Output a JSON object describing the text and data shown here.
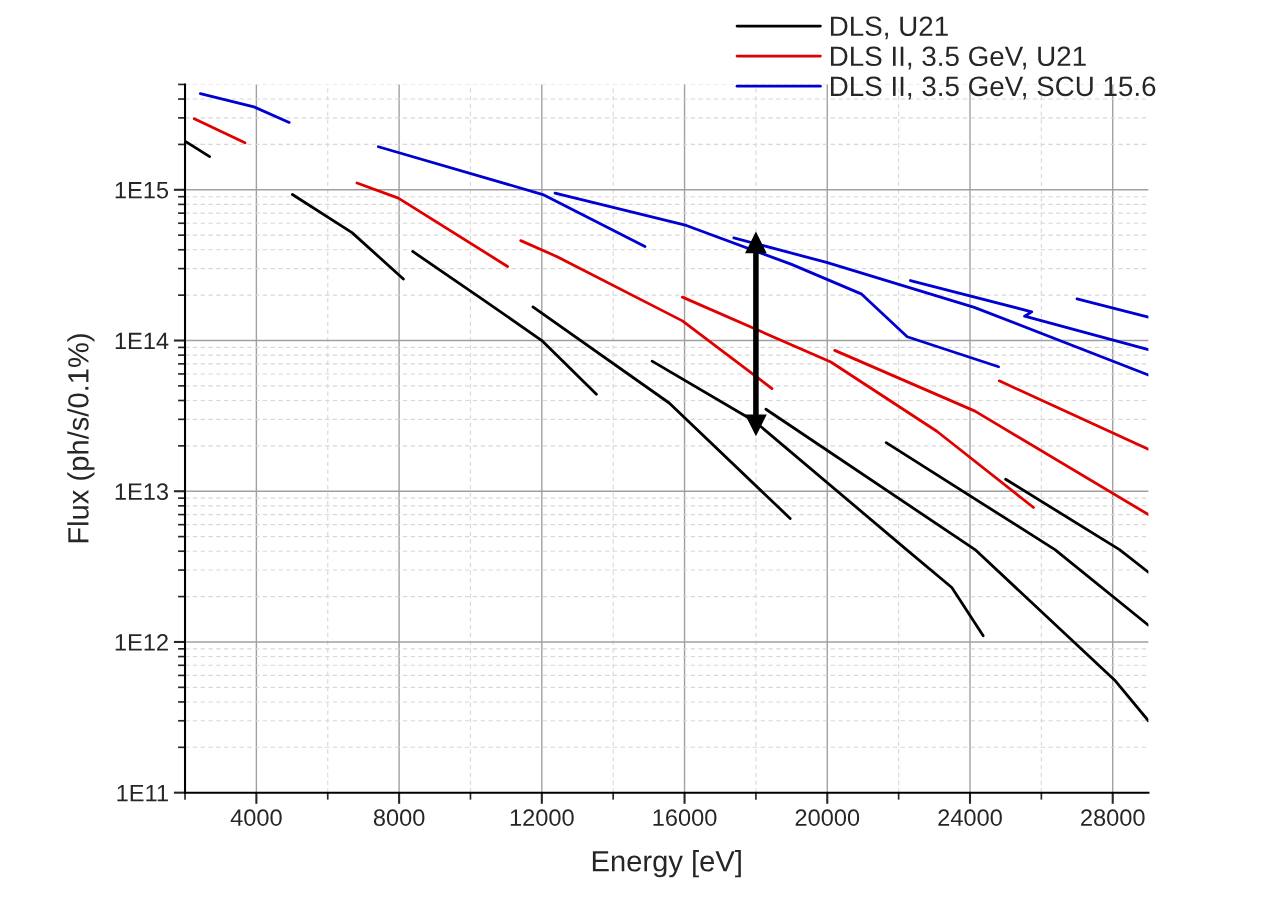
{
  "chart_data": {
    "type": "line",
    "xlabel": "Energy [eV]",
    "ylabel": "Flux (ph/s/0.1%)",
    "log": "y",
    "grid": true,
    "legend": "top right",
    "line_style": "solid",
    "marker": "none",
    "xlim": [
      2000,
      29000
    ],
    "xticks": [
      4000,
      8000,
      12000,
      16000,
      20000,
      24000,
      28000
    ],
    "ylim": [
      100000000000.0,
      5000000000000000.0
    ],
    "yticks": [
      {
        "value": 100000000000.0,
        "label": "1E11"
      },
      {
        "value": 1000000000000.0,
        "label": "1E12"
      },
      {
        "value": 10000000000000.0,
        "label": "1E13"
      },
      {
        "value": 100000000000000.0,
        "label": "1E14"
      },
      {
        "value": 1000000000000000.0,
        "label": "1E15"
      }
    ],
    "series": [
      {
        "name": "DLS, U21",
        "color": "#000000",
        "x": [
          2000,
          2690,
          null,
          5010,
          6680,
          8120,
          null,
          8380,
          10360,
          12000,
          13530,
          null,
          11750,
          15570,
          18960,
          null,
          15090,
          17970,
          22220,
          23490,
          24370,
          null,
          18280,
          24140,
          28050,
          29000,
          null,
          21650,
          26380,
          29000,
          null,
          25000,
          28190,
          29000
        ],
        "values": [
          2100000000000000.0,
          1660000000000000.0,
          null,
          930000000000000.0,
          520000000000000.0,
          256000000000000.0,
          null,
          390000000000000.0,
          186000000000000.0,
          100000000000000.0,
          44000000000000.0,
          null,
          167000000000000.0,
          38500000000000.0,
          6600000000000.0,
          null,
          73000000000000.0,
          29000000000000.0,
          4100000000000.0,
          2300000000000.0,
          1100000000000.0,
          null,
          35000000000000.0,
          4100000000000.0,
          560000000000.0,
          300000000000.0,
          null,
          21000000000000.0,
          4100000000000.0,
          1290000000000.0,
          null,
          12000000000000.0,
          4100000000000.0,
          2900000000000.0
        ]
      },
      {
        "name": "DLS II, 3.5 GeV, U21",
        "color": "#e00000",
        "x": [
          2260,
          3680,
          null,
          6820,
          7980,
          11040,
          null,
          11410,
          12430,
          15940,
          18450,
          null,
          15940,
          20100,
          23070,
          25780,
          null,
          20210,
          24140,
          29000,
          null,
          24820,
          29000
        ],
        "values": [
          2960000000000000.0,
          2050000000000000.0,
          null,
          1110000000000000.0,
          880000000000000.0,
          310000000000000.0,
          null,
          460000000000000.0,
          360000000000000.0,
          135000000000000.0,
          48000000000000.0,
          null,
          194000000000000.0,
          72000000000000.0,
          25000000000000.0,
          7800000000000.0,
          null,
          86000000000000.0,
          34000000000000.0,
          7000000000000.0,
          null,
          54000000000000.0,
          19000000000000.0
        ]
      },
      {
        "name": "DLS II, 3.5 GeV, SCU 15.6",
        "color": "#0000d0",
        "x": [
          2430,
          3930,
          4920,
          null,
          7420,
          12030,
          14890,
          null,
          12370,
          16050,
          19000,
          20950,
          22240,
          24800,
          null,
          17380,
          19980,
          24120,
          29000,
          null,
          22330,
          25730,
          25530,
          29000,
          null,
          27000,
          29000
        ],
        "values": [
          4350000000000000.0,
          3550000000000000.0,
          2800000000000000.0,
          null,
          1930000000000000.0,
          930000000000000.0,
          420000000000000.0,
          null,
          950000000000000.0,
          580000000000000.0,
          320000000000000.0,
          204000000000000.0,
          106000000000000.0,
          67000000000000.0,
          null,
          480000000000000.0,
          330000000000000.0,
          166000000000000.0,
          59000000000000.0,
          null,
          250000000000000.0,
          155000000000000.0,
          145000000000000.0,
          87000000000000.0,
          null,
          189000000000000.0,
          143000000000000.0
        ]
      },
      {
        "type": "line",
        "color": "#000000",
        "marker": "triangle",
        "x": [
          18000,
          18000
        ],
        "values": [
          27500000000000.0,
          445000000000000.0
        ]
      }
    ]
  }
}
